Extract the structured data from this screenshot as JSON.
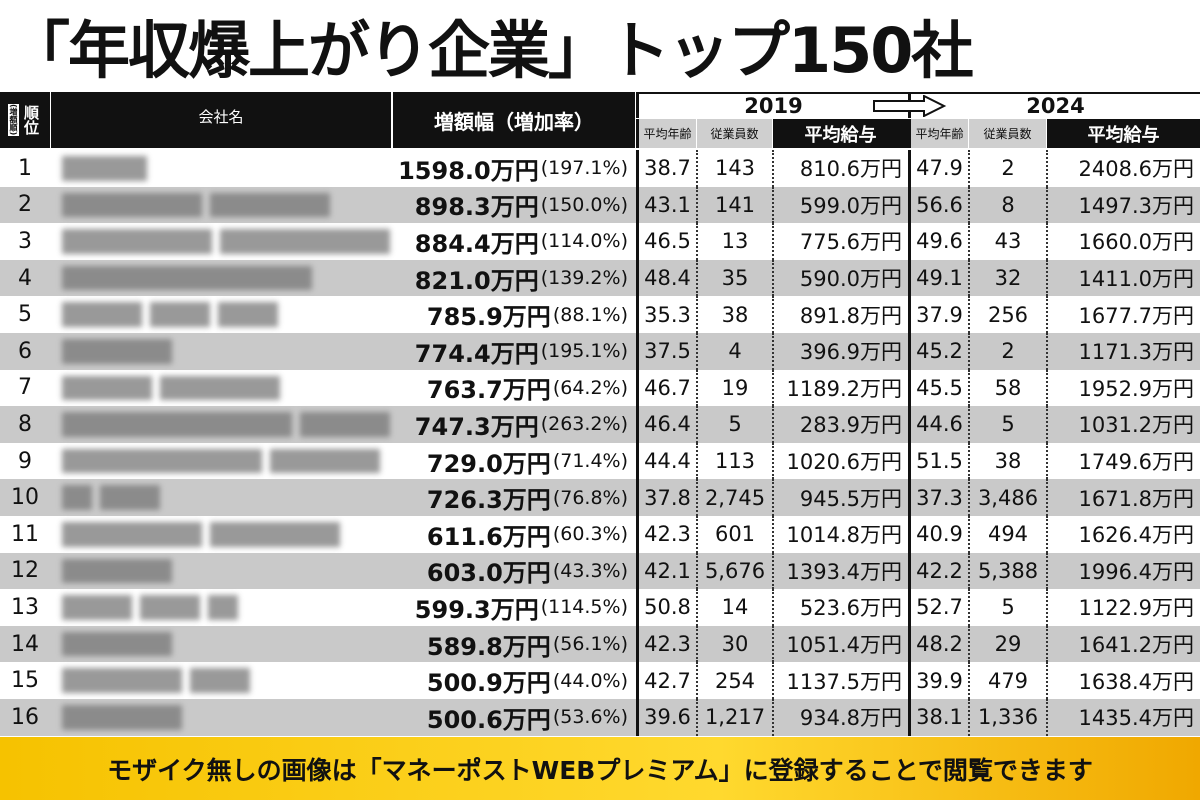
{
  "title": "「年収爆上がり企業」トップ150社",
  "table": {
    "header": {
      "rank": "順位",
      "rank_note": "(増額順)",
      "company": "会社名",
      "increase": "増額幅（増加率）",
      "year_a": "2019",
      "year_b": "2024",
      "sub_a": [
        "平均年齢",
        "従業員数",
        "平均給与"
      ],
      "sub_b": [
        "平均年齢",
        "従業員数",
        "平均給与"
      ]
    },
    "rows": [
      [
        "1",
        "1598.0万円",
        "(197.1%)",
        "38.7",
        "143",
        "810.6万円",
        "47.9",
        "2",
        "2408.6万円"
      ],
      [
        "2",
        "898.3万円",
        "(150.0%)",
        "43.1",
        "141",
        "599.0万円",
        "56.6",
        "8",
        "1497.3万円"
      ],
      [
        "3",
        "884.4万円",
        "(114.0%)",
        "46.5",
        "13",
        "775.6万円",
        "49.6",
        "43",
        "1660.0万円"
      ],
      [
        "4",
        "821.0万円",
        "(139.2%)",
        "48.4",
        "35",
        "590.0万円",
        "49.1",
        "32",
        "1411.0万円"
      ],
      [
        "5",
        "785.9万円",
        "(88.1%)",
        "35.3",
        "38",
        "891.8万円",
        "37.9",
        "256",
        "1677.7万円"
      ],
      [
        "6",
        "774.4万円",
        "(195.1%)",
        "37.5",
        "4",
        "396.9万円",
        "45.2",
        "2",
        "1171.3万円"
      ],
      [
        "7",
        "763.7万円",
        "(64.2%)",
        "46.7",
        "19",
        "1189.2万円",
        "45.5",
        "58",
        "1952.9万円"
      ],
      [
        "8",
        "747.3万円",
        "(263.2%)",
        "46.4",
        "5",
        "283.9万円",
        "44.6",
        "5",
        "1031.2万円"
      ],
      [
        "9",
        "729.0万円",
        "(71.4%)",
        "44.4",
        "113",
        "1020.6万円",
        "51.5",
        "38",
        "1749.6万円"
      ],
      [
        "10",
        "726.3万円",
        "(76.8%)",
        "37.8",
        "2,745",
        "945.5万円",
        "37.3",
        "3,486",
        "1671.8万円"
      ],
      [
        "11",
        "611.6万円",
        "(60.3%)",
        "42.3",
        "601",
        "1014.8万円",
        "40.9",
        "494",
        "1626.4万円"
      ],
      [
        "12",
        "603.0万円",
        "(43.3%)",
        "42.1",
        "5,676",
        "1393.4万円",
        "42.2",
        "5,388",
        "1996.4万円"
      ],
      [
        "13",
        "599.3万円",
        "(114.5%)",
        "50.8",
        "14",
        "523.6万円",
        "52.7",
        "5",
        "1122.9万円"
      ],
      [
        "14",
        "589.8万円",
        "(56.1%)",
        "42.3",
        "30",
        "1051.4万円",
        "48.2",
        "29",
        "1641.2万円"
      ],
      [
        "15",
        "500.9万円",
        "(44.0%)",
        "42.7",
        "254",
        "1137.5万円",
        "39.9",
        "479",
        "1638.4万円"
      ],
      [
        "16",
        "500.6万円",
        "(53.6%)",
        "39.6",
        "1,217",
        "934.8万円",
        "38.1",
        "1,336",
        "1435.4万円"
      ]
    ]
  },
  "banner": {
    "before": "モザイク無しの画像は",
    "highlight": "「マネーポストWEBプレミアム」",
    "after": "に登録することで閲覧できます"
  }
}
